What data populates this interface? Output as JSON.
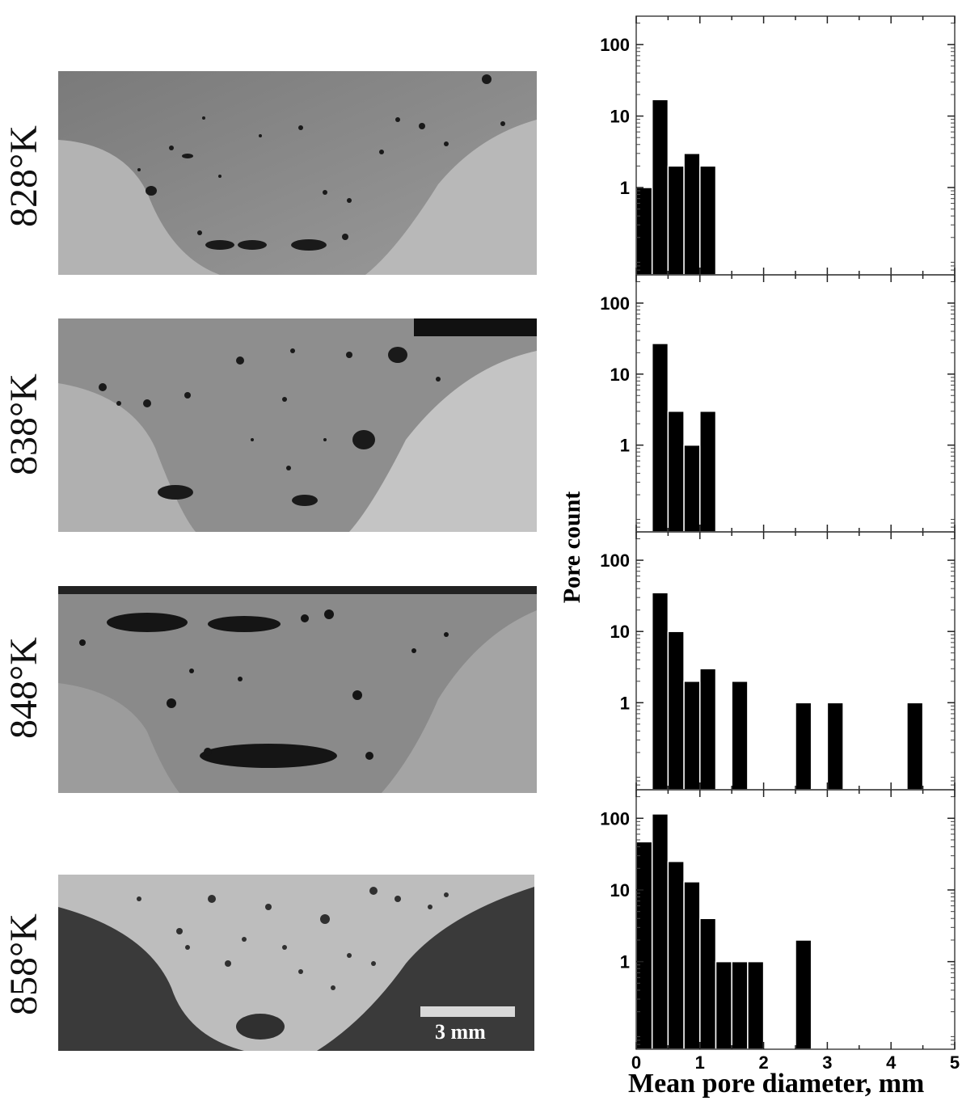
{
  "labels": {
    "temps": [
      "828°K",
      "838°K",
      "848°K",
      "858°K"
    ],
    "scale_bar": "3 mm"
  },
  "chart_data": {
    "type": "bar",
    "xlabel": "Mean pore diameter, mm",
    "ylabel": "Pore count",
    "xlim": [
      0,
      5
    ],
    "ylim": [
      0.06,
      250
    ],
    "yscale": "log",
    "bin_width": 0.25,
    "x_ticks": [
      "0",
      "1",
      "2",
      "3",
      "4",
      "5"
    ],
    "y_ticks": [
      "1",
      "10",
      "100"
    ],
    "panels": [
      {
        "name": "828°K",
        "bins": [
          {
            "x": 0.0,
            "v": 1
          },
          {
            "x": 0.25,
            "v": 17
          },
          {
            "x": 0.5,
            "v": 2
          },
          {
            "x": 0.75,
            "v": 3
          },
          {
            "x": 1.0,
            "v": 2
          }
        ]
      },
      {
        "name": "838°K",
        "bins": [
          {
            "x": 0.25,
            "v": 27
          },
          {
            "x": 0.5,
            "v": 3
          },
          {
            "x": 0.75,
            "v": 1
          },
          {
            "x": 1.0,
            "v": 3
          }
        ]
      },
      {
        "name": "848°K",
        "bins": [
          {
            "x": 0.25,
            "v": 35
          },
          {
            "x": 0.5,
            "v": 10
          },
          {
            "x": 0.75,
            "v": 2
          },
          {
            "x": 1.0,
            "v": 3
          },
          {
            "x": 1.5,
            "v": 2
          },
          {
            "x": 2.5,
            "v": 1
          },
          {
            "x": 3.0,
            "v": 1
          },
          {
            "x": 4.25,
            "v": 1
          }
        ]
      },
      {
        "name": "858°K",
        "bins": [
          {
            "x": 0.0,
            "v": 47
          },
          {
            "x": 0.25,
            "v": 115
          },
          {
            "x": 0.5,
            "v": 25
          },
          {
            "x": 0.75,
            "v": 13
          },
          {
            "x": 1.0,
            "v": 4
          },
          {
            "x": 1.25,
            "v": 1
          },
          {
            "x": 1.5,
            "v": 1
          },
          {
            "x": 1.75,
            "v": 1
          },
          {
            "x": 2.5,
            "v": 2
          }
        ]
      }
    ]
  }
}
